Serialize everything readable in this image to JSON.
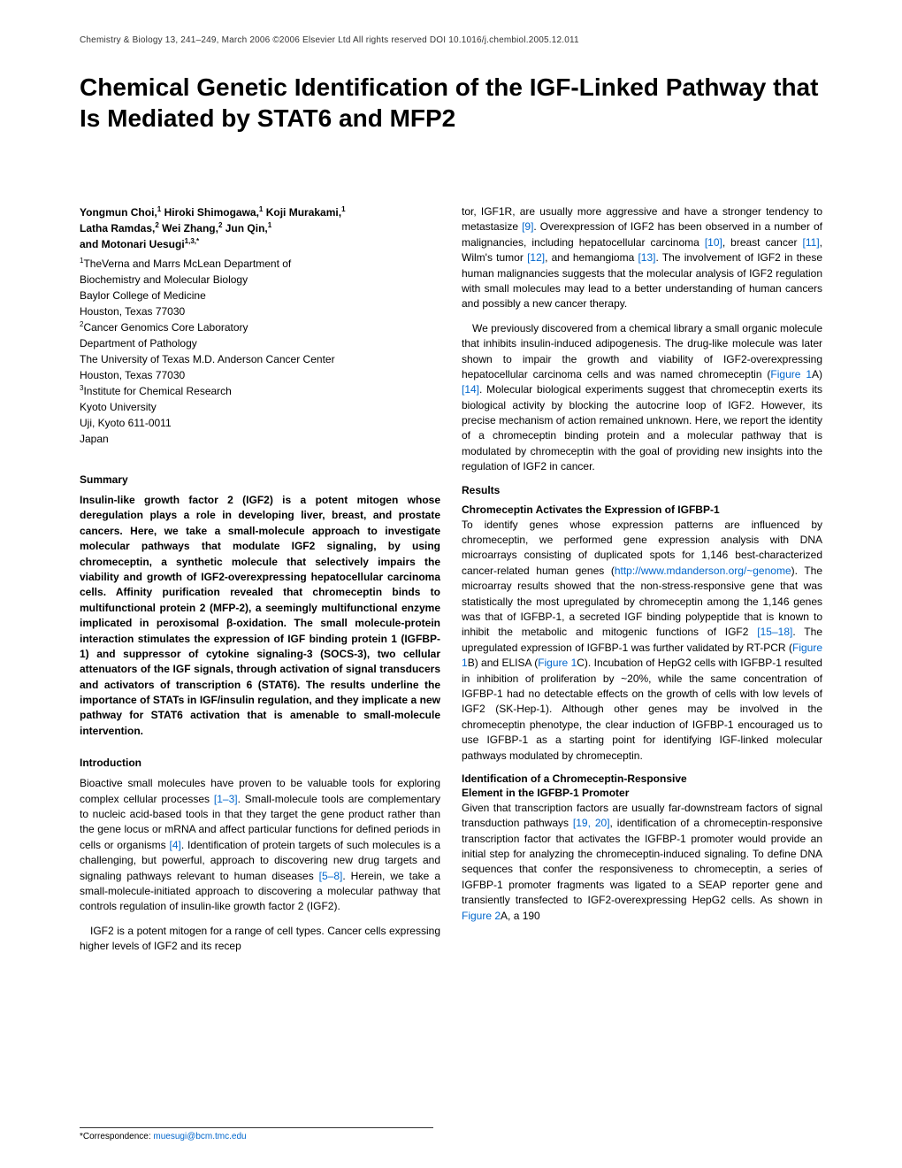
{
  "header": {
    "text": "Chemistry & Biology 13, 241–249, March 2006 ©2006 Elsevier Ltd All rights reserved   DOI 10.1016/j.chembiol.2005.12.011"
  },
  "title": "Chemical Genetic Identification of the IGF-Linked Pathway that Is Mediated by STAT6 and MFP2",
  "authors_line1": "Yongmun Choi,",
  "authors_sup1": "1",
  "authors_line2": " Hiroki Shimogawa,",
  "authors_sup2": "1",
  "authors_line3": " Koji Murakami,",
  "authors_sup3": "1",
  "authors_line4": "Latha Ramdas,",
  "authors_sup4": "2",
  "authors_line5": " Wei Zhang,",
  "authors_sup5": "2",
  "authors_line6": " Jun Qin,",
  "authors_sup6": "1",
  "authors_line7": "and Motonari Uesugi",
  "authors_sup7": "1,3,*",
  "affil": {
    "l1_sup": "1",
    "l1": "TheVerna and Marrs McLean Department of",
    "l2": "Biochemistry and Molecular Biology",
    "l3": "Baylor College of Medicine",
    "l4": "Houston, Texas 77030",
    "l5_sup": "2",
    "l5": "Cancer Genomics Core Laboratory",
    "l6": "Department of Pathology",
    "l7": "The University of Texas M.D. Anderson Cancer Center",
    "l8": "Houston, Texas 77030",
    "l9_sup": "3",
    "l9": "Institute for Chemical Research",
    "l10": "Kyoto University",
    "l11": "Uji, Kyoto 611-0011",
    "l12": "Japan"
  },
  "sections": {
    "summary": "Summary",
    "intro": "Introduction",
    "results": "Results"
  },
  "summary_text": "Insulin-like growth factor 2 (IGF2) is a potent mitogen whose deregulation plays a role in developing liver, breast, and prostate cancers. Here, we take a small-molecule approach to investigate molecular pathways that modulate IGF2 signaling, by using chromeceptin, a synthetic molecule that selectively impairs the viability and growth of IGF2-overexpressing hepatocellular carcinoma cells. Affinity purification revealed that chromeceptin binds to multifunctional protein 2 (MFP-2), a seemingly multifunctional enzyme implicated in peroxisomal β-oxidation. The small molecule-protein interaction stimulates the expression of IGF binding protein 1 (IGFBP-1) and suppressor of cytokine signaling-3 (SOCS-3), two cellular attenuators of the IGF signals, through activation of signal transducers and activators of transcription 6 (STAT6). The results underline the importance of STATs in IGF/insulin regulation, and they implicate a new pathway for STAT6 activation that is amenable to small-molecule intervention.",
  "intro_p1_a": "Bioactive small molecules have proven to be valuable tools for exploring complex cellular processes ",
  "intro_p1_ref1": "[1–3]",
  "intro_p1_b": ". Small-molecule tools are complementary to nucleic acid-based tools in that they target the gene product rather than the gene locus or mRNA and affect particular functions for defined periods in cells or organisms ",
  "intro_p1_ref2": "[4]",
  "intro_p1_c": ". Identification of protein targets of such molecules is a challenging, but powerful, approach to discovering new drug targets and signaling pathways relevant to human diseases ",
  "intro_p1_ref3": "[5–8]",
  "intro_p1_d": ". Herein, we take a small-molecule-initiated approach to discovering a molecular pathway that controls regulation of insulin-like growth factor 2 (IGF2).",
  "intro_p2": "IGF2 is a potent mitogen for a range of cell types. Cancer cells expressing higher levels of IGF2 and its recep",
  "col2_p1_a": "tor, IGF1R, are usually more aggressive and have a stronger tendency to metastasize ",
  "col2_p1_ref1": "[9]",
  "col2_p1_b": ". Overexpression of IGF2 has been observed in a number of malignancies, including hepatocellular carcinoma ",
  "col2_p1_ref2": "[10]",
  "col2_p1_c": ", breast cancer ",
  "col2_p1_ref3": "[11]",
  "col2_p1_d": ", Wilm's tumor ",
  "col2_p1_ref4": "[12]",
  "col2_p1_e": ", and hemangioma ",
  "col2_p1_ref5": "[13]",
  "col2_p1_f": ". The involvement of IGF2 in these human malignancies suggests that the molecular analysis of IGF2 regulation with small molecules may lead to a better understanding of human cancers and possibly a new cancer therapy.",
  "col2_p2_a": "We previously discovered from a chemical library a small organic molecule that inhibits insulin-induced adipogenesis. The drug-like molecule was later shown to impair the growth and viability of IGF2-overexpressing hepatocellular carcinoma cells and was named chromeceptin (",
  "col2_p2_fig1": "Figure 1",
  "col2_p2_b": "A) ",
  "col2_p2_ref1": "[14]",
  "col2_p2_c": ". Molecular biological experiments suggest that chromeceptin exerts its biological activity by blocking the autocrine loop of IGF2. However, its precise mechanism of action remained unknown. Here, we report the identity of a chromeceptin binding protein and a molecular pathway that is modulated by chromeceptin with the goal of providing new insights into the regulation of IGF2 in cancer.",
  "results_sub1": "Chromeceptin Activates the Expression of IGFBP-1",
  "results_p1_a": "To identify genes whose expression patterns are influenced by chromeceptin, we performed gene expression analysis with DNA microarrays consisting of duplicated spots for 1,146 best-characterized cancer-related human genes (",
  "results_p1_url": "http://www.mdanderson.org/~genome",
  "results_p1_b": "). The microarray results showed that the non-stress-responsive gene that was statistically the most upregulated by chromeceptin among the 1,146 genes was that of IGFBP-1, a secreted IGF binding polypeptide that is known to inhibit the metabolic and mitogenic functions of IGF2 ",
  "results_p1_ref1": "[15–18]",
  "results_p1_c": ". The upregulated expression of IGFBP-1 was further validated by RT-PCR (",
  "results_p1_fig1": "Figure 1",
  "results_p1_d": "B) and ELISA (",
  "results_p1_fig2": "Figure 1",
  "results_p1_e": "C). Incubation of HepG2 cells with IGFBP-1 resulted in inhibition of proliferation by ~20%, while the same concentration of IGFBP-1 had no detectable effects on the growth of cells with low levels of IGF2 (SK-Hep-1). Although other genes may be involved in the chromeceptin phenotype, the clear induction of IGFBP-1 encouraged us to use IGFBP-1 as a starting point for identifying IGF-linked molecular pathways modulated by chromeceptin.",
  "results_sub2a": "Identification of a Chromeceptin-Responsive",
  "results_sub2b": "Element in the IGFBP-1 Promoter",
  "results_p2_a": "Given that transcription factors are usually far-downstream factors of signal transduction pathways ",
  "results_p2_ref1": "[19, 20]",
  "results_p2_b": ", identification of a chromeceptin-responsive transcription factor that activates the IGFBP-1 promoter would provide an initial step for analyzing the chromeceptin-induced signaling. To define DNA sequences that confer the responsiveness to chromeceptin, a series of IGFBP-1 promoter fragments was ligated to a SEAP reporter gene and transiently transfected to IGF2-overexpressing HepG2 cells. As shown in ",
  "results_p2_fig1": "Figure 2",
  "results_p2_c": "A, a 190",
  "footer": {
    "label": "*Correspondence: ",
    "email": "muesugi@bcm.tmc.edu"
  },
  "colors": {
    "text": "#000000",
    "link": "#0066cc",
    "background": "#ffffff"
  },
  "typography": {
    "title_size": 28,
    "body_size": 12,
    "header_size": 10,
    "footer_size": 10,
    "font_family": "Arial, Helvetica, sans-serif"
  }
}
